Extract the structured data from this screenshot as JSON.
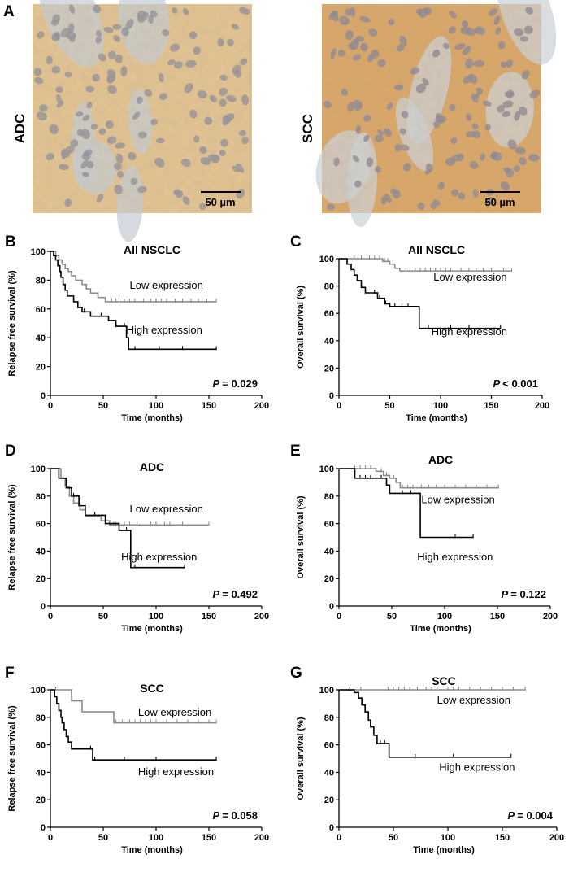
{
  "micrographs": [
    {
      "letter": "A",
      "label": "ADC",
      "scale_bar": "50 µm",
      "colors": {
        "base": "#e3c493",
        "nuclei": "#8f8e9c",
        "stroma": "#c6cdd5"
      }
    },
    {
      "letter": "",
      "label": "SCC",
      "scale_bar": "50 µm",
      "colors": {
        "base": "#d9a566",
        "nuclei": "#8a8696",
        "stroma": "#ccd3da"
      }
    }
  ],
  "colors": {
    "high": "#000000",
    "low": "#8c8c8c"
  },
  "chart_data": [
    {
      "letter": "B",
      "type": "line",
      "title": "All NSCLC",
      "xlabel": "Time (months)",
      "ylabel": "Relapse free survival (%)",
      "xlim": [
        0,
        200
      ],
      "ylim": [
        0,
        100
      ],
      "xticks": [
        "0",
        "50",
        "100",
        "150",
        "200"
      ],
      "yticks": [
        "0",
        "20",
        "40",
        "60",
        "80",
        "100"
      ],
      "pvalue": "= 0.029",
      "series": [
        {
          "name": "Low expression",
          "color": "low",
          "label_at": [
            75,
            74
          ],
          "steps": [
            [
              0,
              100
            ],
            [
              5,
              97
            ],
            [
              8,
              94
            ],
            [
              11,
              91
            ],
            [
              14,
              88
            ],
            [
              17,
              86
            ],
            [
              20,
              83
            ],
            [
              24,
              80
            ],
            [
              30,
              77
            ],
            [
              34,
              74
            ],
            [
              38,
              71
            ],
            [
              45,
              68
            ],
            [
              52,
              65
            ],
            [
              157,
              65
            ]
          ],
          "censors": [
            58,
            62,
            65,
            70,
            75,
            80,
            88,
            95,
            100,
            105,
            110,
            118,
            125,
            133,
            140,
            148,
            157
          ]
        },
        {
          "name": "High expression",
          "color": "high",
          "label_at": [
            72,
            43
          ],
          "steps": [
            [
              0,
              100
            ],
            [
              3,
              97
            ],
            [
              5,
              94
            ],
            [
              7,
              90
            ],
            [
              9,
              86
            ],
            [
              10,
              82
            ],
            [
              12,
              77
            ],
            [
              14,
              73
            ],
            [
              16,
              69
            ],
            [
              22,
              65
            ],
            [
              26,
              61
            ],
            [
              30,
              58
            ],
            [
              38,
              55
            ],
            [
              55,
              52
            ],
            [
              62,
              48
            ],
            [
              72,
              40
            ],
            [
              74,
              32
            ],
            [
              157,
              32
            ]
          ],
          "censors": [
            32,
            48,
            55,
            62,
            70,
            80,
            103,
            125,
            157
          ]
        }
      ]
    },
    {
      "letter": "C",
      "type": "line",
      "title": "All NSCLC",
      "xlabel": "Time (months)",
      "ylabel": "Overall survival (%)",
      "xlim": [
        0,
        200
      ],
      "ylim": [
        0,
        100
      ],
      "xticks": [
        "0",
        "50",
        "100",
        "150",
        "200"
      ],
      "yticks": [
        "0",
        "20",
        "40",
        "60",
        "80",
        "100"
      ],
      "pvalue": "< 0.001",
      "series": [
        {
          "name": "Low expression",
          "color": "low",
          "label_at": [
            93,
            84
          ],
          "steps": [
            [
              0,
              100
            ],
            [
              43,
              98
            ],
            [
              50,
              96
            ],
            [
              55,
              93
            ],
            [
              60,
              91
            ],
            [
              170,
              91
            ]
          ],
          "censors": [
            15,
            22,
            30,
            35,
            40,
            45,
            48,
            62,
            66,
            70,
            75,
            80,
            85,
            90,
            95,
            100,
            105,
            110,
            120,
            128,
            135,
            142,
            150,
            162,
            170
          ]
        },
        {
          "name": "High expression",
          "color": "high",
          "label_at": [
            91,
            44
          ],
          "steps": [
            [
              0,
              100
            ],
            [
              8,
              96
            ],
            [
              12,
              92
            ],
            [
              15,
              88
            ],
            [
              18,
              84
            ],
            [
              22,
              79
            ],
            [
              26,
              75
            ],
            [
              38,
              71
            ],
            [
              45,
              67
            ],
            [
              50,
              65
            ],
            [
              77,
              65
            ],
            [
              79,
              49
            ],
            [
              159,
              49
            ]
          ],
          "censors": [
            35,
            40,
            46,
            50,
            55,
            62,
            68,
            88,
            110,
            128,
            159
          ]
        }
      ]
    },
    {
      "letter": "D",
      "type": "line",
      "title": "ADC",
      "xlabel": "Time (months)",
      "ylabel": "Relapse free survival (%)",
      "xlim": [
        0,
        200
      ],
      "ylim": [
        0,
        100
      ],
      "xticks": [
        "0",
        "50",
        "100",
        "150",
        "200"
      ],
      "yticks": [
        "0",
        "20",
        "40",
        "60",
        "80",
        "100"
      ],
      "pvalue": "= 0.492",
      "series": [
        {
          "name": "Low expression",
          "color": "low",
          "label_at": [
            75,
            68
          ],
          "steps": [
            [
              0,
              100
            ],
            [
              10,
              93
            ],
            [
              14,
              87
            ],
            [
              18,
              80
            ],
            [
              22,
              75
            ],
            [
              28,
              70
            ],
            [
              33,
              65
            ],
            [
              48,
              62
            ],
            [
              56,
              59
            ],
            [
              150,
              59
            ]
          ],
          "censors": [
            56,
            60,
            62,
            65,
            70,
            75,
            82,
            95,
            100,
            108,
            113,
            125,
            150
          ]
        },
        {
          "name": "High expression",
          "color": "high",
          "label_at": [
            67,
            33
          ],
          "steps": [
            [
              0,
              100
            ],
            [
              8,
              93
            ],
            [
              15,
              86
            ],
            [
              20,
              80
            ],
            [
              27,
              73
            ],
            [
              33,
              66
            ],
            [
              47,
              66
            ],
            [
              52,
              60
            ],
            [
              65,
              55
            ],
            [
              74,
              55
            ],
            [
              76,
              28
            ],
            [
              127,
              28
            ]
          ],
          "censors": [
            12,
            22,
            42,
            52,
            72,
            80,
            127
          ]
        }
      ]
    },
    {
      "letter": "E",
      "type": "line",
      "title": "ADC",
      "xlabel": "Time (months)",
      "ylabel": "Overall survival (%)",
      "xlim": [
        0,
        200
      ],
      "ylim": [
        0,
        100
      ],
      "xticks": [
        "0",
        "50",
        "100",
        "150",
        "200"
      ],
      "yticks": [
        "0",
        "20",
        "40",
        "60",
        "80",
        "100"
      ],
      "pvalue": "= 0.122",
      "series": [
        {
          "name": "Low expression",
          "color": "low",
          "label_at": [
            78,
            75
          ],
          "steps": [
            [
              0,
              100
            ],
            [
              35,
              98
            ],
            [
              42,
              95
            ],
            [
              48,
              93
            ],
            [
              54,
              90
            ],
            [
              58,
              86
            ],
            [
              151,
              86
            ]
          ],
          "censors": [
            15,
            20,
            25,
            30,
            40,
            45,
            52,
            60,
            65,
            70,
            78,
            85,
            92,
            100,
            110,
            120,
            130,
            140,
            151
          ]
        },
        {
          "name": "High expression",
          "color": "high",
          "label_at": [
            74,
            33
          ],
          "steps": [
            [
              0,
              100
            ],
            [
              15,
              93
            ],
            [
              45,
              88
            ],
            [
              48,
              82
            ],
            [
              75,
              82
            ],
            [
              77,
              50
            ],
            [
              127,
              50
            ]
          ],
          "censors": [
            20,
            25,
            30,
            40,
            60,
            68,
            110,
            127
          ]
        }
      ]
    },
    {
      "letter": "F",
      "type": "line",
      "title": "SCC",
      "xlabel": "Time (months)",
      "ylabel": "Relapse free survival (%)",
      "xlim": [
        0,
        200
      ],
      "ylim": [
        0,
        100
      ],
      "xticks": [
        "0",
        "50",
        "100",
        "150",
        "200"
      ],
      "yticks": [
        "0",
        "20",
        "40",
        "60",
        "80",
        "100"
      ],
      "pvalue": "= 0.058",
      "series": [
        {
          "name": "Low expression",
          "color": "low",
          "label_at": [
            83,
            81
          ],
          "steps": [
            [
              0,
              100
            ],
            [
              20,
              92
            ],
            [
              30,
              84
            ],
            [
              55,
              84
            ],
            [
              60,
              76
            ],
            [
              157,
              76
            ]
          ],
          "censors": [
            5,
            62,
            68,
            75,
            80,
            85,
            90,
            95,
            100,
            110,
            120,
            130,
            140,
            150,
            157
          ]
        },
        {
          "name": "High expression",
          "color": "high",
          "label_at": [
            83,
            38
          ],
          "steps": [
            [
              0,
              100
            ],
            [
              4,
              95
            ],
            [
              6,
              90
            ],
            [
              8,
              85
            ],
            [
              10,
              80
            ],
            [
              11,
              76
            ],
            [
              13,
              71
            ],
            [
              15,
              66
            ],
            [
              17,
              62
            ],
            [
              20,
              57
            ],
            [
              37,
              57
            ],
            [
              40,
              49
            ],
            [
              157,
              49
            ]
          ],
          "censors": [
            38,
            42,
            70,
            100,
            157
          ]
        }
      ]
    },
    {
      "letter": "G",
      "type": "line",
      "title": "SCC",
      "xlabel": "Time (months)",
      "ylabel": "Overall survival (%)",
      "xlim": [
        0,
        200
      ],
      "ylim": [
        0,
        100
      ],
      "xticks": [
        "0",
        "50",
        "100",
        "150",
        "200"
      ],
      "yticks": [
        "0",
        "20",
        "40",
        "60",
        "80",
        "100"
      ],
      "pvalue": "= 0.004",
      "series": [
        {
          "name": "Low expression",
          "color": "low",
          "label_at": [
            90,
            90
          ],
          "steps": [
            [
              0,
              100
            ],
            [
              171,
              100
            ]
          ],
          "censors": [
            10,
            20,
            45,
            50,
            55,
            60,
            65,
            72,
            80,
            85,
            90,
            100,
            105,
            110,
            120,
            130,
            140,
            150,
            160,
            171
          ]
        },
        {
          "name": "High expression",
          "color": "high",
          "label_at": [
            92,
            41
          ],
          "steps": [
            [
              0,
              100
            ],
            [
              14,
              98
            ],
            [
              18,
              94
            ],
            [
              21,
              89
            ],
            [
              24,
              84
            ],
            [
              27,
              78
            ],
            [
              29,
              73
            ],
            [
              32,
              67
            ],
            [
              35,
              61
            ],
            [
              42,
              61
            ],
            [
              46,
              51
            ],
            [
              158,
              51
            ]
          ],
          "censors": [
            10,
            35,
            38,
            42,
            70,
            105,
            158
          ]
        }
      ]
    }
  ]
}
